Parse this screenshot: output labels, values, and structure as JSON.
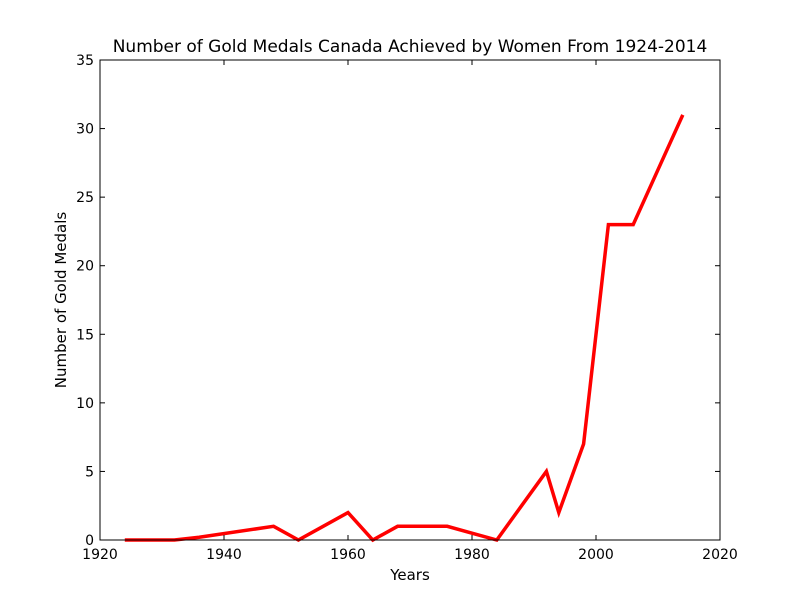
{
  "chart_data": {
    "type": "line",
    "title": "Number of Gold Medals Canada Achieved by Women From 1924-2014",
    "xlabel": "Years",
    "ylabel": "Number of Gold Medals",
    "xlim": [
      1920,
      2020
    ],
    "ylim": [
      0,
      35
    ],
    "xticks": [
      1920,
      1940,
      1960,
      1980,
      2000,
      2020
    ],
    "yticks": [
      0,
      5,
      10,
      15,
      20,
      25,
      30,
      35
    ],
    "grid": false,
    "legend": "none",
    "series": [
      {
        "color": "#ff0000",
        "x": [
          1924,
          1928,
          1932,
          1936,
          1948,
          1952,
          1956,
          1960,
          1964,
          1968,
          1972,
          1976,
          1980,
          1984,
          1988,
          1992,
          1994,
          1998,
          2002,
          2006,
          2010,
          2014
        ],
        "y": [
          0,
          0,
          0,
          0.2,
          1,
          0,
          1,
          2,
          0,
          1,
          1,
          1,
          0.5,
          0,
          2.5,
          5,
          2,
          7,
          23,
          23,
          27,
          31
        ]
      }
    ]
  }
}
